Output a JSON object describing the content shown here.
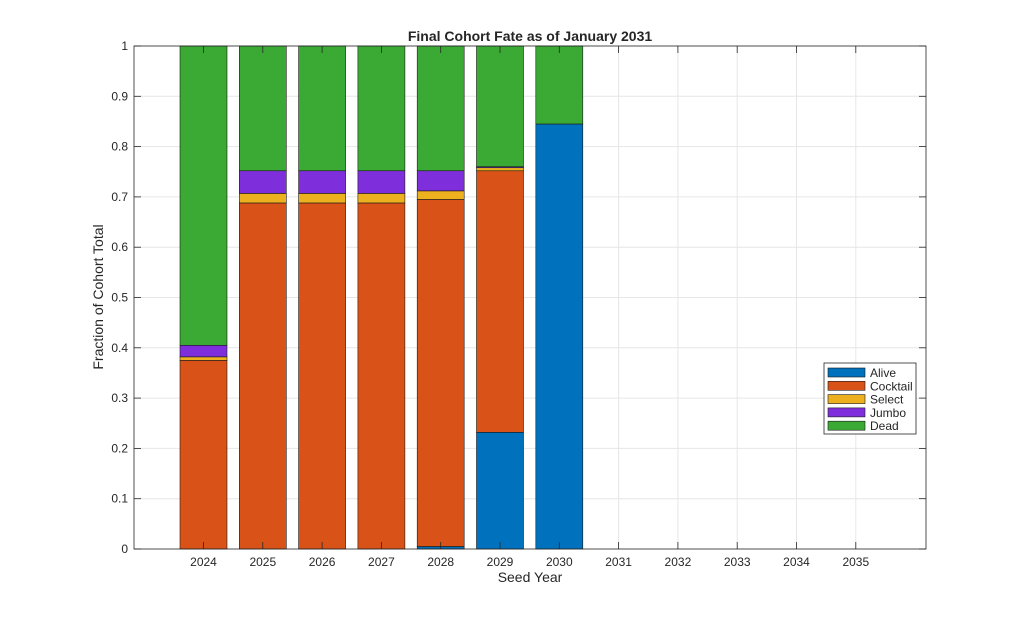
{
  "chart_data": {
    "type": "bar",
    "stacked": true,
    "title": "Final Cohort Fate as of January 2031",
    "xlabel": "Seed Year",
    "ylabel": "Fraction of Cohort Total",
    "ylim": [
      0,
      1
    ],
    "yticks": [
      "0",
      "0.1",
      "0.2",
      "0.3",
      "0.4",
      "0.5",
      "0.6",
      "0.7",
      "0.8",
      "0.9",
      "1"
    ],
    "ytick_values": [
      0,
      0.1,
      0.2,
      0.3,
      0.4,
      0.5,
      0.6,
      0.7,
      0.8,
      0.9,
      1
    ],
    "grid": true,
    "legend_position": "right",
    "categories": [
      "2024",
      "2025",
      "2026",
      "2027",
      "2028",
      "2029",
      "2030",
      "2031",
      "2032",
      "2033",
      "2034",
      "2035"
    ],
    "series": [
      {
        "name": "Alive",
        "color": "#0072BD",
        "values": [
          0,
          0,
          0,
          0,
          0.005,
          0.232,
          0.845,
          0,
          0,
          0,
          0,
          0
        ]
      },
      {
        "name": "Cocktail",
        "color": "#D95319",
        "values": [
          0.375,
          0.688,
          0.688,
          0.688,
          0.69,
          0.52,
          0,
          0,
          0,
          0,
          0,
          0
        ]
      },
      {
        "name": "Select",
        "color": "#EDB120",
        "values": [
          0.007,
          0.019,
          0.019,
          0.019,
          0.017,
          0.006,
          0,
          0,
          0,
          0,
          0,
          0
        ]
      },
      {
        "name": "Jumbo",
        "color": "#7E2FDB",
        "values": [
          0.023,
          0.045,
          0.045,
          0.045,
          0.04,
          0.002,
          0,
          0,
          0,
          0,
          0,
          0
        ]
      },
      {
        "name": "Dead",
        "color": "#3BAA35",
        "values": [
          0.595,
          0.248,
          0.248,
          0.248,
          0.248,
          0.24,
          0.155,
          0,
          0,
          0,
          0,
          0
        ]
      }
    ]
  }
}
